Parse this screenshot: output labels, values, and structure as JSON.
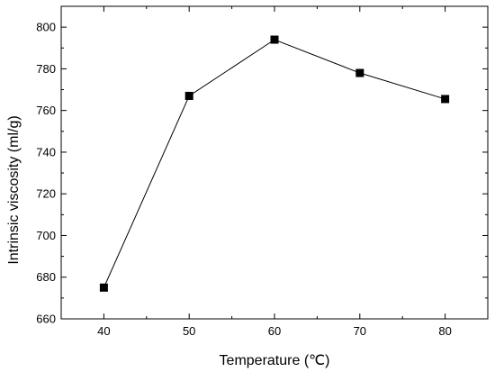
{
  "chart_data": {
    "type": "line",
    "title": "",
    "xlabel": "Temperature (℃)",
    "ylabel": "Intrinsic viscosity (ml/g)",
    "x": [
      40,
      50,
      60,
      70,
      80
    ],
    "series": [
      {
        "values": [
          675,
          767,
          794,
          778,
          765.5
        ]
      }
    ],
    "xlim": [
      35,
      85
    ],
    "ylim": [
      660,
      810
    ],
    "xticks": [
      40,
      50,
      60,
      70,
      80
    ],
    "yticks": [
      660,
      680,
      700,
      720,
      740,
      760,
      780,
      800
    ],
    "marker": "square",
    "grid": false,
    "legend": "none",
    "colors": {
      "line": "#000000",
      "marker": "#000000",
      "frame": "#000000"
    }
  }
}
